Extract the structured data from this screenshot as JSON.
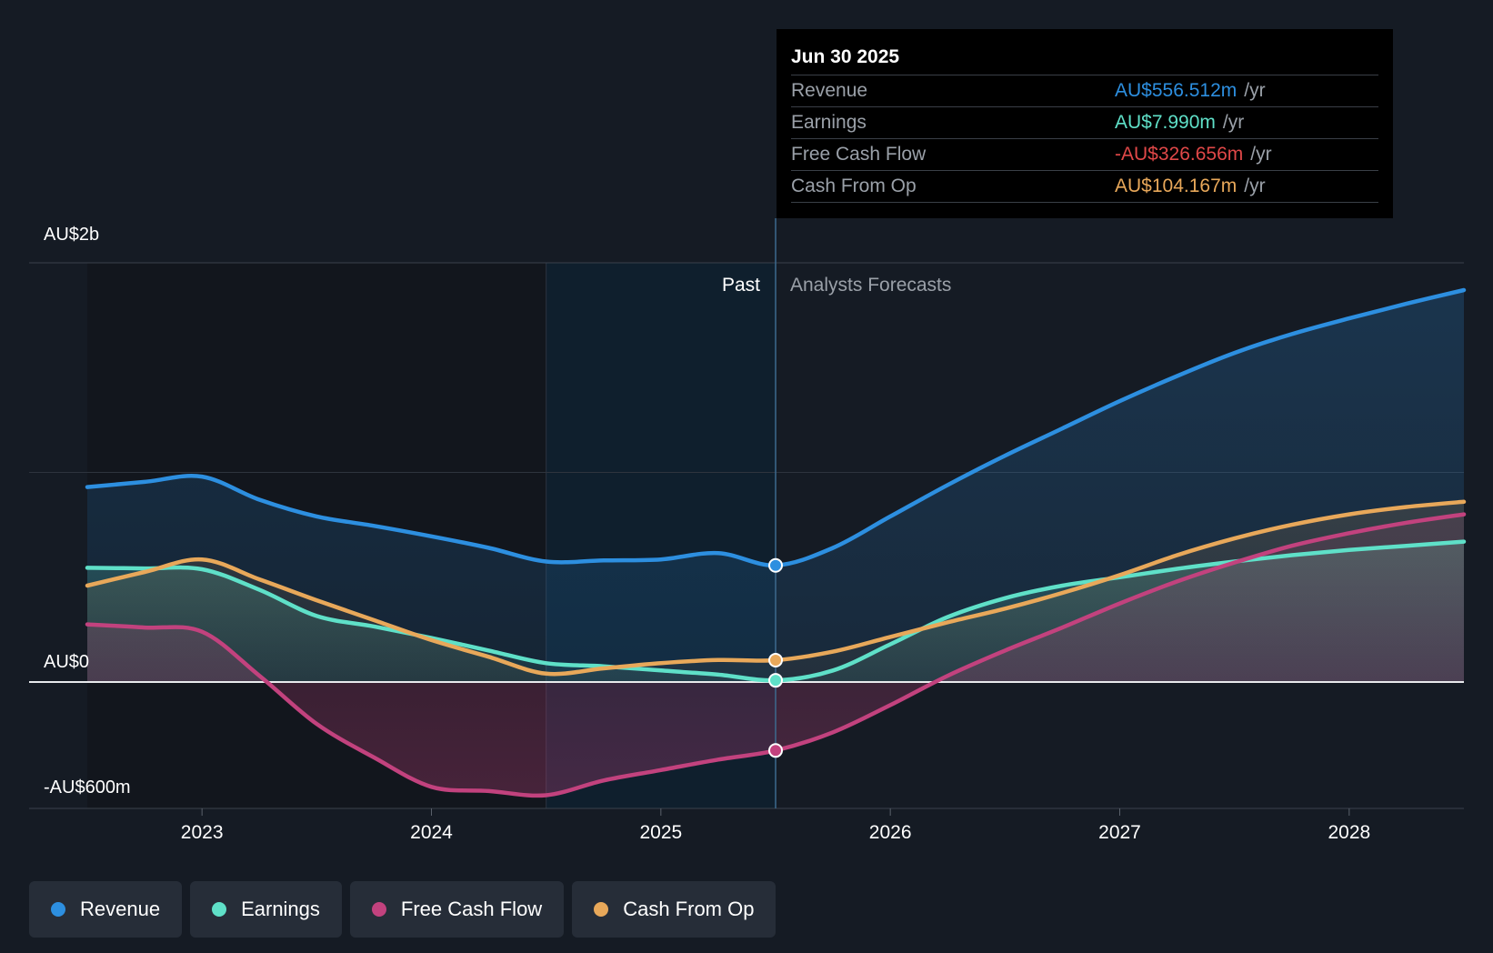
{
  "chart_data": {
    "type": "area",
    "title": "",
    "y_axis": {
      "labels": [
        "AU$2b",
        "AU$0",
        "-AU$600m"
      ],
      "ylim": [
        -600,
        2000
      ],
      "unit": "AU$m"
    },
    "x_axis": {
      "ticks": [
        2023,
        2024,
        2025,
        2026,
        2027,
        2028
      ],
      "tick_labels": [
        "2023",
        "2024",
        "2025",
        "2026",
        "2027",
        "2028"
      ],
      "xlim": [
        2022.5,
        2028.5
      ]
    },
    "past_label": "Past",
    "forecast_label": "Analysts Forecasts",
    "highlight_start": 2024.5,
    "divider_x": 2025.5,
    "series": [
      {
        "name": "Revenue",
        "color": "#2d8fe0",
        "points": [
          [
            2022.5,
            930
          ],
          [
            2022.75,
            955
          ],
          [
            2023.0,
            980
          ],
          [
            2023.25,
            870
          ],
          [
            2023.5,
            790
          ],
          [
            2023.75,
            745
          ],
          [
            2024.0,
            695
          ],
          [
            2024.25,
            640
          ],
          [
            2024.5,
            575
          ],
          [
            2024.75,
            580
          ],
          [
            2025.0,
            585
          ],
          [
            2025.25,
            615
          ],
          [
            2025.5,
            556.512
          ],
          [
            2025.75,
            640
          ],
          [
            2026.0,
            790
          ],
          [
            2026.25,
            940
          ],
          [
            2026.5,
            1080
          ],
          [
            2026.75,
            1210
          ],
          [
            2027.0,
            1340
          ],
          [
            2027.25,
            1460
          ],
          [
            2027.5,
            1570
          ],
          [
            2027.75,
            1660
          ],
          [
            2028.0,
            1735
          ],
          [
            2028.25,
            1805
          ],
          [
            2028.5,
            1870
          ]
        ]
      },
      {
        "name": "Earnings",
        "color": "#5fe0c8",
        "points": [
          [
            2022.5,
            545
          ],
          [
            2022.75,
            542
          ],
          [
            2023.0,
            538
          ],
          [
            2023.25,
            440
          ],
          [
            2023.5,
            315
          ],
          [
            2023.75,
            265
          ],
          [
            2024.0,
            210
          ],
          [
            2024.25,
            150
          ],
          [
            2024.5,
            90
          ],
          [
            2024.75,
            75
          ],
          [
            2025.0,
            55
          ],
          [
            2025.25,
            35
          ],
          [
            2025.5,
            7.99
          ],
          [
            2025.75,
            55
          ],
          [
            2026.0,
            180
          ],
          [
            2026.25,
            310
          ],
          [
            2026.5,
            400
          ],
          [
            2026.75,
            460
          ],
          [
            2027.0,
            500
          ],
          [
            2027.25,
            540
          ],
          [
            2027.5,
            575
          ],
          [
            2027.75,
            605
          ],
          [
            2028.0,
            630
          ],
          [
            2028.25,
            650
          ],
          [
            2028.5,
            670
          ]
        ]
      },
      {
        "name": "Free Cash Flow",
        "color": "#c2427e",
        "points": [
          [
            2022.5,
            275
          ],
          [
            2022.75,
            260
          ],
          [
            2023.0,
            240
          ],
          [
            2023.25,
            30
          ],
          [
            2023.5,
            -200
          ],
          [
            2023.75,
            -360
          ],
          [
            2024.0,
            -500
          ],
          [
            2024.25,
            -520
          ],
          [
            2024.5,
            -540
          ],
          [
            2024.75,
            -470
          ],
          [
            2025.0,
            -420
          ],
          [
            2025.25,
            -370
          ],
          [
            2025.5,
            -326.656
          ],
          [
            2025.75,
            -240
          ],
          [
            2026.0,
            -110
          ],
          [
            2026.25,
            30
          ],
          [
            2026.5,
            150
          ],
          [
            2026.75,
            260
          ],
          [
            2027.0,
            375
          ],
          [
            2027.25,
            480
          ],
          [
            2027.5,
            570
          ],
          [
            2027.75,
            650
          ],
          [
            2028.0,
            710
          ],
          [
            2028.25,
            760
          ],
          [
            2028.5,
            800
          ]
        ]
      },
      {
        "name": "Cash From Op",
        "color": "#e8a85a",
        "points": [
          [
            2022.5,
            460
          ],
          [
            2022.75,
            525
          ],
          [
            2023.0,
            585
          ],
          [
            2023.25,
            490
          ],
          [
            2023.5,
            390
          ],
          [
            2023.75,
            295
          ],
          [
            2024.0,
            200
          ],
          [
            2024.25,
            120
          ],
          [
            2024.5,
            40
          ],
          [
            2024.75,
            65
          ],
          [
            2025.0,
            90
          ],
          [
            2025.25,
            105
          ],
          [
            2025.5,
            104.167
          ],
          [
            2025.75,
            145
          ],
          [
            2026.0,
            215
          ],
          [
            2026.25,
            285
          ],
          [
            2026.5,
            350
          ],
          [
            2026.75,
            425
          ],
          [
            2027.0,
            510
          ],
          [
            2027.25,
            605
          ],
          [
            2027.5,
            685
          ],
          [
            2027.75,
            750
          ],
          [
            2028.0,
            800
          ],
          [
            2028.25,
            835
          ],
          [
            2028.5,
            860
          ]
        ]
      }
    ]
  },
  "tooltip": {
    "date": "Jun 30 2025",
    "rows": [
      {
        "label": "Revenue",
        "value": "AU$556.512m",
        "unit": "/yr",
        "color": "#2d8fe0"
      },
      {
        "label": "Earnings",
        "value": "AU$7.990m",
        "unit": "/yr",
        "color": "#5fe0c8"
      },
      {
        "label": "Free Cash Flow",
        "value": "-AU$326.656m",
        "unit": "/yr",
        "color": "#e04848"
      },
      {
        "label": "Cash From Op",
        "value": "AU$104.167m",
        "unit": "/yr",
        "color": "#e8a85a"
      }
    ]
  },
  "legend": {
    "items": [
      {
        "label": "Revenue",
        "color": "#2d8fe0"
      },
      {
        "label": "Earnings",
        "color": "#5fe0c8"
      },
      {
        "label": "Free Cash Flow",
        "color": "#c2427e"
      },
      {
        "label": "Cash From Op",
        "color": "#e8a85a"
      }
    ]
  }
}
